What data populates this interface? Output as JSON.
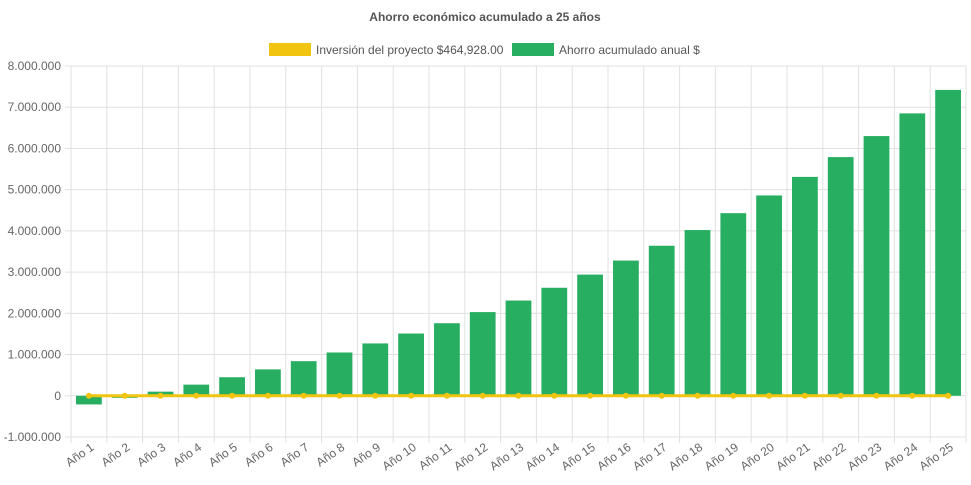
{
  "chart_data": {
    "type": "bar",
    "title": "Ahorro económico acumulado a 25 años",
    "xlabel": "",
    "ylabel": "",
    "ylim": [
      -1000000,
      8000000
    ],
    "y_ticks": [
      8000000,
      7000000,
      6000000,
      5000000,
      4000000,
      3000000,
      2000000,
      1000000,
      0,
      -1000000
    ],
    "y_tick_labels": [
      "8.000.000",
      "7.000.000",
      "6.000.000",
      "5.000.000",
      "4.000.000",
      "3.000.000",
      "2.000.000",
      "1.000.000",
      "0",
      "-1.000.000"
    ],
    "grid": true,
    "legend_position": "top",
    "categories": [
      "Año 1",
      "Año 2",
      "Año 3",
      "Año 4",
      "Año 5",
      "Año 6",
      "Año 7",
      "Año 8",
      "Año 9",
      "Año 10",
      "Año 11",
      "Año 12",
      "Año 13",
      "Año 14",
      "Año 15",
      "Año 16",
      "Año 17",
      "Año 18",
      "Año 19",
      "Año 20",
      "Año 21",
      "Año 22",
      "Año 23",
      "Año 24",
      "Año 25"
    ],
    "series": [
      {
        "name": "Inversión del proyecto $464,928.00",
        "type": "line",
        "color": "#f1c40f",
        "values": [
          0,
          0,
          0,
          0,
          0,
          0,
          0,
          0,
          0,
          0,
          0,
          0,
          0,
          0,
          0,
          0,
          0,
          0,
          0,
          0,
          0,
          0,
          0,
          0,
          0
        ]
      },
      {
        "name": "Ahorro acumulado anual $",
        "type": "bar",
        "color": "#27ae60",
        "values": [
          -210000,
          -50000,
          100000,
          270000,
          450000,
          640000,
          840000,
          1050000,
          1270000,
          1510000,
          1760000,
          2030000,
          2310000,
          2620000,
          2940000,
          3280000,
          3640000,
          4020000,
          4430000,
          4860000,
          5310000,
          5790000,
          6300000,
          6850000,
          7420000
        ]
      }
    ]
  }
}
